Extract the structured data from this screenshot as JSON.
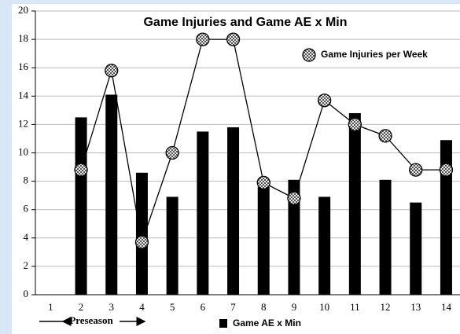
{
  "chart_data": {
    "type": "bar",
    "title": "Game Injuries and Game AE x Min",
    "annotation": "Preseason",
    "categories": [
      1,
      2,
      3,
      4,
      5,
      6,
      7,
      8,
      9,
      10,
      11,
      12,
      13,
      14
    ],
    "series": [
      {
        "name": "Game AE x Min",
        "type": "bar",
        "color": "#000000",
        "values": [
          null,
          12.5,
          14.1,
          8.6,
          6.9,
          11.5,
          11.8,
          7.6,
          8.1,
          6.9,
          12.8,
          8.1,
          6.5,
          10.9
        ]
      },
      {
        "name": "Game Injuries per Week",
        "type": "line",
        "color": "#808080",
        "values": [
          null,
          8.8,
          15.8,
          3.7,
          10,
          18,
          18,
          7.9,
          6.8,
          13.7,
          12,
          11.2,
          8.8,
          8.8
        ]
      }
    ],
    "ylim": [
      0,
      20
    ],
    "yticks": [
      0,
      2,
      4,
      6,
      8,
      10,
      12,
      14,
      16,
      18,
      20
    ],
    "grid": true
  }
}
